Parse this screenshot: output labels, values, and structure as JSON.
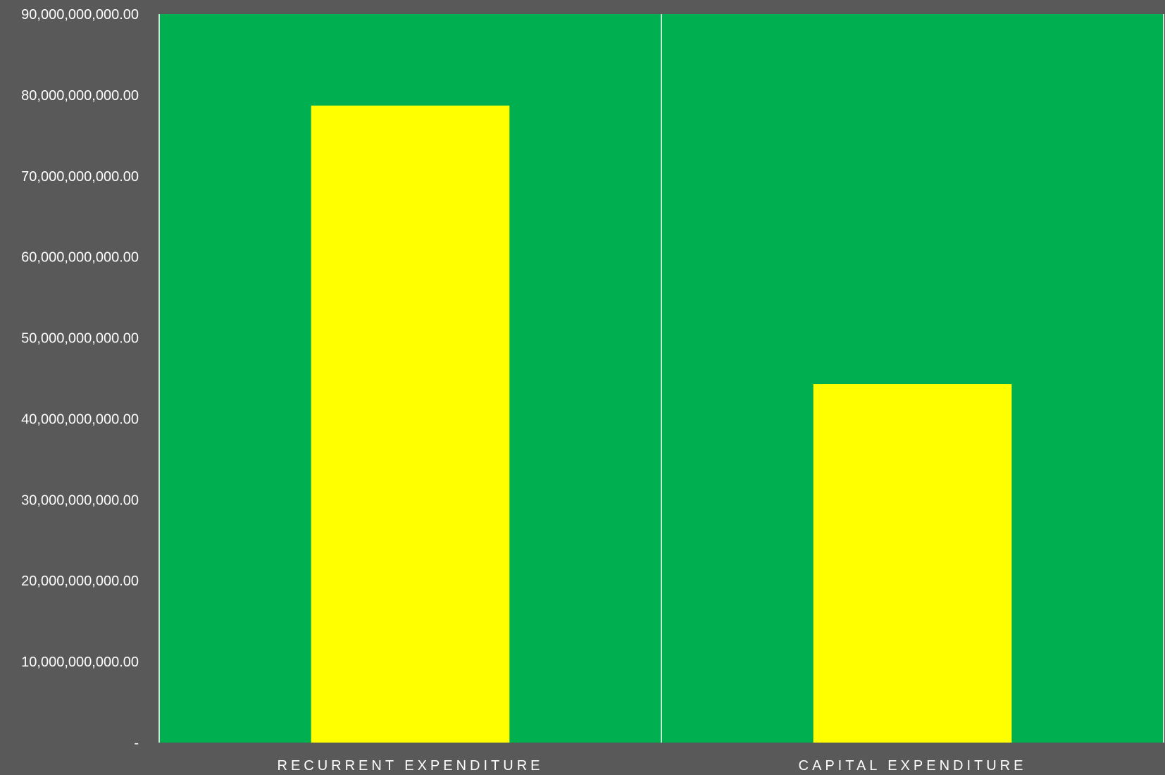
{
  "colors": {
    "page_background": "#595959",
    "plot_background": "#00B050",
    "bar": "#FFFF00",
    "gridline": "#ffffff",
    "text": "#ffffff"
  },
  "chart_data": {
    "type": "bar",
    "title": "",
    "xlabel": "",
    "ylabel": "",
    "categories": [
      "RECURRENT EXPENDITURE",
      "CAPITAL EXPENDITURE"
    ],
    "values": [
      78700000000,
      44300000000
    ],
    "ylim": [
      0,
      90000000000
    ],
    "yticks": [
      0,
      10000000000,
      20000000000,
      30000000000,
      40000000000,
      50000000000,
      60000000000,
      70000000000,
      80000000000,
      90000000000
    ],
    "ytick_labels": [
      "-",
      "10,000,000,000.00",
      "20,000,000,000.00",
      "30,000,000,000.00",
      "40,000,000,000.00",
      "50,000,000,000.00",
      "60,000,000,000.00",
      "70,000,000,000.00",
      "80,000,000,000.00",
      "90,000,000,000.00"
    ],
    "grid": "vertical category separators",
    "legend": "none"
  }
}
